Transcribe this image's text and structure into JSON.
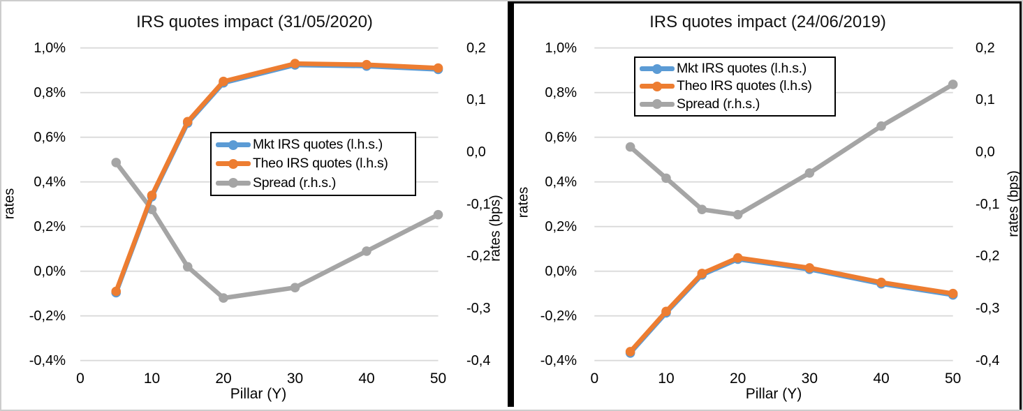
{
  "figure": {
    "border_color": "#cdcdcd",
    "divider_color": "#000000",
    "gridline_color": "#d9d9d9",
    "background": "#ffffff"
  },
  "chart_data": [
    {
      "type": "line",
      "title": "IRS quotes impact (31/05/2020)",
      "x": [
        5,
        10,
        15,
        20,
        30,
        40,
        50
      ],
      "x_axis": {
        "label": "Pillar (Y)",
        "ticks": [
          "0",
          "10",
          "20",
          "30",
          "40",
          "50"
        ],
        "tick_values": [
          0,
          10,
          20,
          30,
          40,
          50
        ],
        "min": 0,
        "max": 50
      },
      "y_left": {
        "label": "rates",
        "unit": "%",
        "ticks": [
          "1,0%",
          "0,8%",
          "0,6%",
          "0,4%",
          "0,2%",
          "0,0%",
          "-0,2%",
          "-0,4%"
        ],
        "tick_values": [
          1.0,
          0.8,
          0.6,
          0.4,
          0.2,
          0.0,
          -0.2,
          -0.4
        ],
        "min": -0.4,
        "max": 1.0,
        "grid": true
      },
      "y_right": {
        "label": "rates (bps)",
        "unit": "bps",
        "ticks": [
          "0,2",
          "0,1",
          "0,0",
          "-0,1",
          "-0,2",
          "-0,3",
          "-0,4"
        ],
        "tick_values": [
          0.2,
          0.1,
          0.0,
          -0.1,
          -0.2,
          -0.3,
          -0.4
        ],
        "min": -0.4,
        "max": 0.2,
        "grid": false
      },
      "legend_position": "middle-right",
      "series": [
        {
          "name": "Mkt IRS quotes (l.h.s.)",
          "axis": "left",
          "color": "#5B9BD5",
          "values": [
            -0.09,
            0.34,
            0.67,
            0.85,
            0.93,
            0.925,
            0.91
          ],
          "note": "overlaps Theo series"
        },
        {
          "name": "Theo IRS quotes (l.h.s)",
          "axis": "left",
          "color": "#ED7D31",
          "values": [
            -0.09,
            0.34,
            0.67,
            0.85,
            0.93,
            0.925,
            0.91
          ]
        },
        {
          "name": "Spread (r.h.s.)",
          "axis": "right",
          "color": "#A5A5A5",
          "values": [
            -0.02,
            -0.11,
            -0.22,
            -0.28,
            -0.26,
            -0.19,
            -0.12
          ]
        }
      ]
    },
    {
      "type": "line",
      "title": "IRS quotes impact (24/06/2019)",
      "x": [
        5,
        10,
        15,
        20,
        30,
        40,
        50
      ],
      "x_axis": {
        "label": "Pillar (Y)",
        "ticks": [
          "0",
          "10",
          "20",
          "30",
          "40",
          "50"
        ],
        "tick_values": [
          0,
          10,
          20,
          30,
          40,
          50
        ],
        "min": 0,
        "max": 50
      },
      "y_left": {
        "label": "rates",
        "unit": "%",
        "ticks": [
          "1,0%",
          "0,8%",
          "0,6%",
          "0,4%",
          "0,2%",
          "0,0%",
          "-0,2%",
          "-0,4%"
        ],
        "tick_values": [
          1.0,
          0.8,
          0.6,
          0.4,
          0.2,
          0.0,
          -0.2,
          -0.4
        ],
        "min": -0.4,
        "max": 1.0,
        "grid": true
      },
      "y_right": {
        "label": "rates (bps)",
        "unit": "bps",
        "ticks": [
          "0,2",
          "0,1",
          "0,0",
          "-0,1",
          "-0,2",
          "-0,3",
          "-0,4"
        ],
        "tick_values": [
          0.2,
          0.1,
          0.0,
          -0.1,
          -0.2,
          -0.3,
          -0.4
        ],
        "min": -0.4,
        "max": 0.2,
        "grid": false
      },
      "legend_position": "top",
      "series": [
        {
          "name": "Mkt IRS quotes (l.h.s.)",
          "axis": "left",
          "color": "#5B9BD5",
          "values": [
            -0.36,
            -0.18,
            -0.01,
            0.06,
            0.015,
            -0.05,
            -0.1
          ],
          "note": "overlaps Theo series"
        },
        {
          "name": "Theo IRS quotes (l.h.s)",
          "axis": "left",
          "color": "#ED7D31",
          "values": [
            -0.36,
            -0.18,
            -0.01,
            0.06,
            0.015,
            -0.05,
            -0.1
          ]
        },
        {
          "name": "Spread (r.h.s.)",
          "axis": "right",
          "color": "#A5A5A5",
          "values": [
            0.01,
            -0.05,
            -0.11,
            -0.12,
            -0.04,
            0.05,
            0.13
          ]
        }
      ]
    }
  ]
}
